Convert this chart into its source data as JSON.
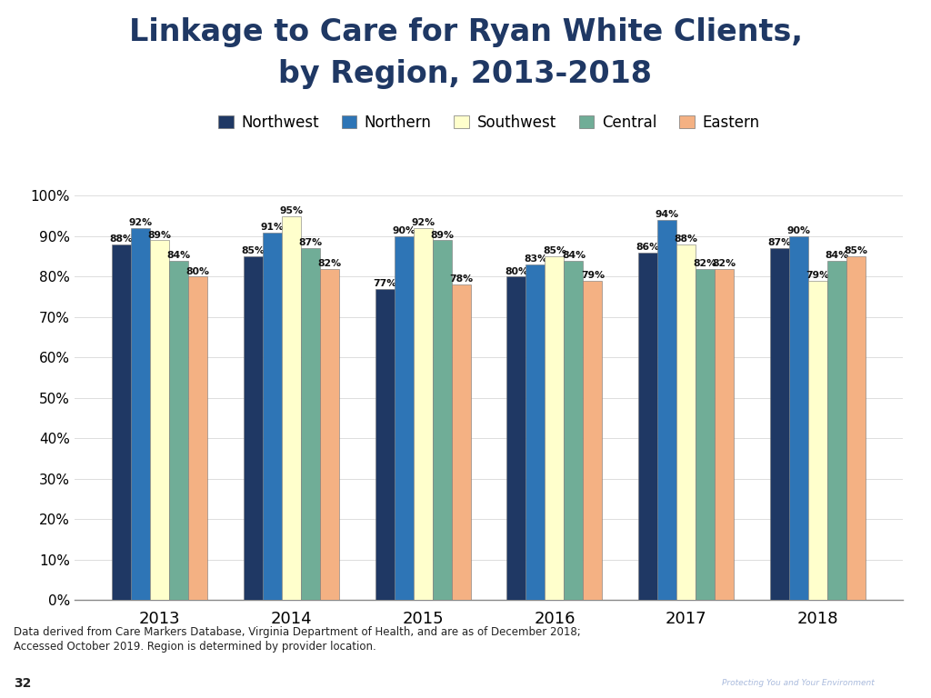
{
  "title_line1": "Linkage to Care for Ryan White Clients,",
  "title_line2": "by Region, 2013-2018",
  "years": [
    "2013",
    "2014",
    "2015",
    "2016",
    "2017",
    "2018"
  ],
  "regions": [
    "Northwest",
    "Northern",
    "Southwest",
    "Central",
    "Eastern"
  ],
  "colors": [
    "#1F3864",
    "#2E75B6",
    "#FFFFCC",
    "#70AD97",
    "#F4B183"
  ],
  "values": {
    "Northwest": [
      88,
      85,
      77,
      80,
      86,
      87
    ],
    "Northern": [
      92,
      91,
      90,
      83,
      94,
      90
    ],
    "Southwest": [
      89,
      95,
      92,
      85,
      88,
      79
    ],
    "Central": [
      84,
      87,
      89,
      84,
      82,
      84
    ],
    "Eastern": [
      80,
      82,
      78,
      79,
      82,
      85
    ]
  },
  "footnote_line1": "Data derived from Care Markers Database, Virginia Department of Health, and are as of December 2018;",
  "footnote_line2": "Accessed October 2019. Region is determined by provider location.",
  "page_number": "32",
  "title_color": "#1F3864",
  "background_color": "#FFFFFF",
  "footer_bg_color": "#2E3B6E",
  "ylim": [
    0,
    100
  ],
  "yticks": [
    0,
    10,
    20,
    30,
    40,
    50,
    60,
    70,
    80,
    90,
    100
  ]
}
